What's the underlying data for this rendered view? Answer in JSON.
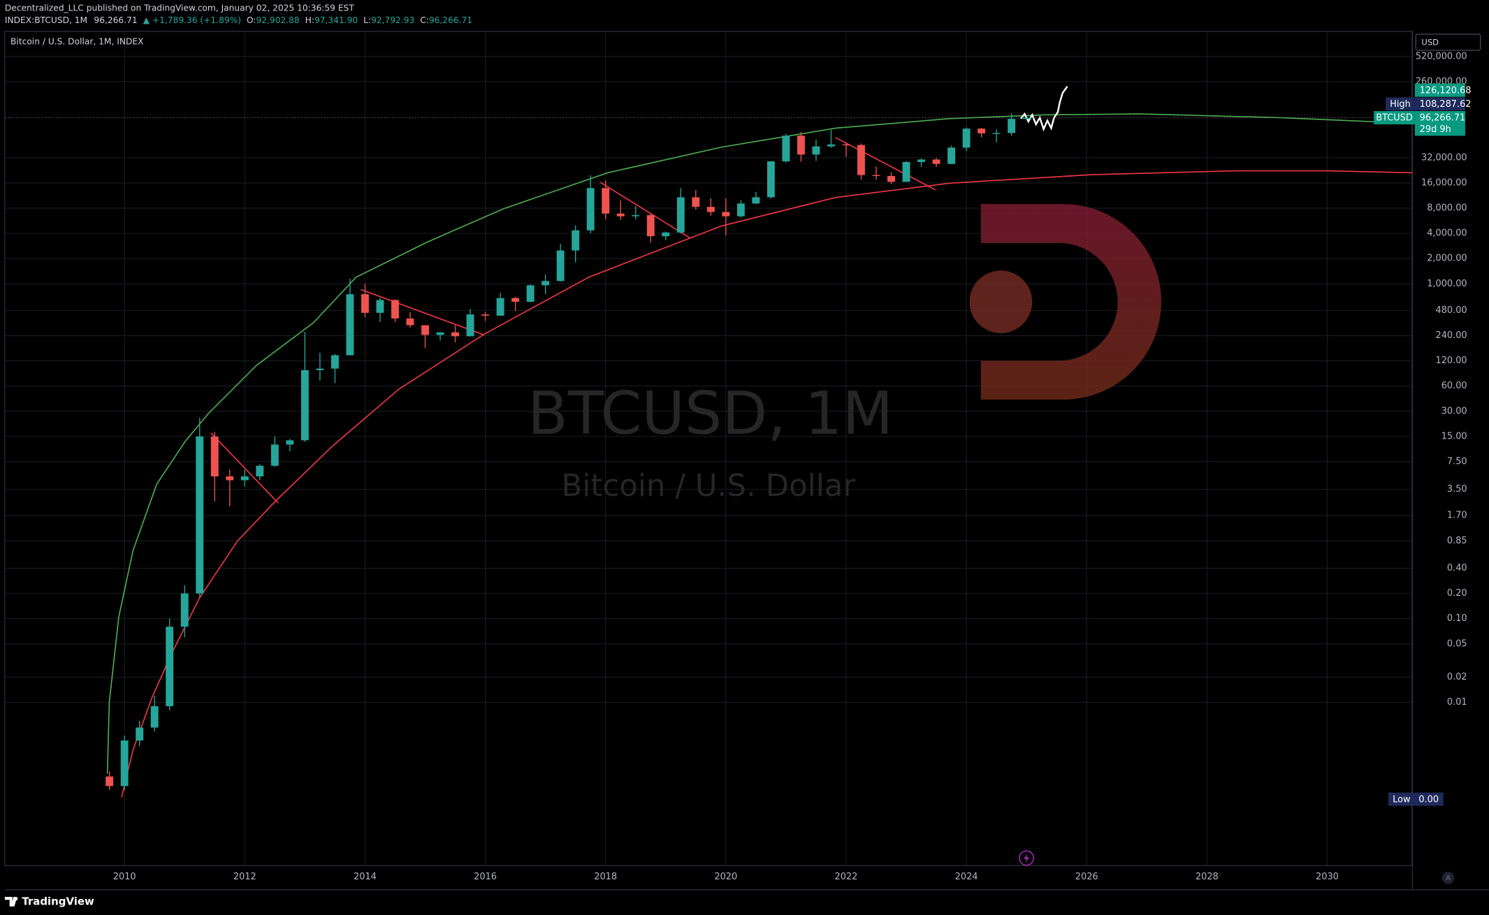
{
  "header": {
    "line1": "Decentralized_LLC published on TradingView.com, January 02, 2025 10:36:59 EST",
    "symbol": "INDEX:BTCUSD, 1M",
    "last": "96,266.71",
    "change": "▲ +1,789.36 (+1.89%)",
    "ohlc": [
      {
        "key": "O:",
        "value": "92,902.88"
      },
      {
        "key": "H:",
        "value": "97,341.90"
      },
      {
        "key": "L:",
        "value": "92,792.93"
      },
      {
        "key": "C:",
        "value": "96,266.71"
      }
    ]
  },
  "chart_data": {
    "type": "candlestick",
    "title": "Bitcoin / U.S. Dollar, 1M, INDEX",
    "watermark": "BTCUSD, 1M",
    "watermark_sub": "Bitcoin / U.S. Dollar",
    "currency": "USD",
    "log_scale": true,
    "grid": true,
    "up_color": "#26a69a",
    "down_color": "#ef5350",
    "x": [
      2009.75,
      2010,
      2010.25,
      2010.5,
      2010.75,
      2011,
      2011.25,
      2011.5,
      2011.75,
      2012,
      2012.25,
      2012.5,
      2012.75,
      2013,
      2013.25,
      2013.5,
      2013.75,
      2014,
      2014.25,
      2014.5,
      2014.75,
      2015,
      2015.25,
      2015.5,
      2015.75,
      2016,
      2016.25,
      2016.5,
      2016.75,
      2017,
      2017.25,
      2017.5,
      2017.75,
      2018,
      2018.25,
      2018.5,
      2018.75,
      2019,
      2019.25,
      2019.5,
      2019.75,
      2020,
      2020.25,
      2020.5,
      2020.75,
      2021,
      2021.25,
      2021.5,
      2021.75,
      2022,
      2022.25,
      2022.5,
      2022.75,
      2023,
      2023.25,
      2023.5,
      2023.75,
      2024,
      2024.25,
      2024.5,
      2024.75,
      2025
    ],
    "open": [
      0.0013,
      0.001,
      0.0035,
      0.005,
      0.009,
      0.08,
      0.2,
      15,
      5,
      4.5,
      5,
      6.7,
      12,
      13.5,
      93,
      97,
      140,
      750,
      450,
      640,
      385,
      320,
      245,
      263,
      236,
      430,
      416,
      675,
      610,
      960,
      1080,
      2500,
      4350,
      13900,
      6900,
      6400,
      6600,
      3700,
      4100,
      10800,
      8300,
      7200,
      6400,
      9100,
      10800,
      29000,
      58800,
      35000,
      43800,
      46200,
      45500,
      19900,
      19400,
      16500,
      28500,
      30500,
      27000,
      42300,
      71300,
      62700,
      63300,
      92902.88
    ],
    "high": [
      0.0015,
      0.004,
      0.006,
      0.012,
      0.1,
      0.25,
      25,
      17,
      6,
      6,
      7,
      15,
      14,
      265,
      150,
      145,
      1150,
      1000,
      680,
      650,
      460,
      320,
      265,
      320,
      500,
      460,
      780,
      700,
      980,
      1300,
      3000,
      5000,
      19800,
      17200,
      9900,
      8500,
      6800,
      4200,
      13900,
      13200,
      10500,
      10500,
      10000,
      12500,
      29300,
      61800,
      64900,
      52900,
      69000,
      48200,
      47400,
      25200,
      21500,
      29200,
      31400,
      31800,
      44700,
      73800,
      72800,
      70000,
      108287.62,
      97341.9
    ],
    "low": [
      0.0009,
      0.0009,
      0.003,
      0.0045,
      0.008,
      0.06,
      0.18,
      2.5,
      2.2,
      3.8,
      4.5,
      6.5,
      10,
      13,
      70,
      65,
      140,
      400,
      350,
      350,
      300,
      170,
      210,
      200,
      235,
      360,
      415,
      470,
      600,
      750,
      1060,
      1800,
      4000,
      5900,
      5800,
      5900,
      3100,
      3300,
      4000,
      7700,
      6500,
      3800,
      6200,
      8900,
      10400,
      28100,
      28800,
      29300,
      42000,
      32900,
      17600,
      17600,
      15500,
      16500,
      24800,
      24900,
      26900,
      38500,
      56500,
      49000,
      58800,
      92792.93
    ],
    "close": [
      0.001,
      0.0035,
      0.005,
      0.009,
      0.08,
      0.2,
      15,
      5,
      4.5,
      5,
      6.7,
      12,
      13.5,
      93,
      97,
      140,
      750,
      450,
      640,
      385,
      320,
      245,
      263,
      236,
      430,
      416,
      675,
      610,
      960,
      1080,
      2500,
      4350,
      13900,
      6900,
      6400,
      6600,
      3700,
      4100,
      10800,
      8300,
      7200,
      6400,
      9100,
      10800,
      29000,
      58800,
      35000,
      43800,
      46200,
      45500,
      19900,
      19400,
      16500,
      28500,
      30500,
      27000,
      42300,
      71300,
      62700,
      63300,
      93400,
      96266.71
    ],
    "xlim": [
      2008.01,
      2031.41
    ],
    "xticks": [
      2010,
      2012,
      2014,
      2016,
      2018,
      2020,
      2022,
      2024,
      2026,
      2028,
      2030
    ],
    "ylim": [
      0.000112,
      1037000
    ],
    "yticks": [
      {
        "value": 520000,
        "label": "520,000.00"
      },
      {
        "value": 260000,
        "label": "260,000.00"
      },
      {
        "value": 32000,
        "label": "32,000.00"
      },
      {
        "value": 16000,
        "label": "16,000.00"
      },
      {
        "value": 8000,
        "label": "8,000.00"
      },
      {
        "value": 4000,
        "label": "4,000.00"
      },
      {
        "value": 2000,
        "label": "2,000.00"
      },
      {
        "value": 1000,
        "label": "1,000.00"
      },
      {
        "value": 480,
        "label": "480.00"
      },
      {
        "value": 240,
        "label": "240.00"
      },
      {
        "value": 120,
        "label": "120.00"
      },
      {
        "value": 60,
        "label": "60.00"
      },
      {
        "value": 30,
        "label": "30.00"
      },
      {
        "value": 15,
        "label": "15.00"
      },
      {
        "value": 7.5,
        "label": "7.50"
      },
      {
        "value": 3.5,
        "label": "3.50"
      },
      {
        "value": 1.7,
        "label": "1.70"
      },
      {
        "value": 0.85,
        "label": "0.85"
      },
      {
        "value": 0.4,
        "label": "0.40"
      },
      {
        "value": 0.2,
        "label": "0.20"
      },
      {
        "value": 0.1,
        "label": "0.10"
      },
      {
        "value": 0.05,
        "label": "0.05"
      },
      {
        "value": 0.02,
        "label": "0.02"
      },
      {
        "value": 0.01,
        "label": "0.01"
      }
    ],
    "price_labels": [
      {
        "value": 126120.68,
        "label": "126,120.68",
        "color": "#089981"
      },
      {
        "name": "High",
        "value": 108287.62,
        "label": "108,287.62",
        "color": "#1e2a5a"
      },
      {
        "name": "BTCUSD",
        "value": 96266.71,
        "label": "96,266.71",
        "countdown": "29d 9h",
        "color": "#089981"
      }
    ],
    "low_label": {
      "name": "Low",
      "label": "0.00"
    }
  },
  "footer": {
    "brand": "TradingView",
    "auto": "A"
  }
}
